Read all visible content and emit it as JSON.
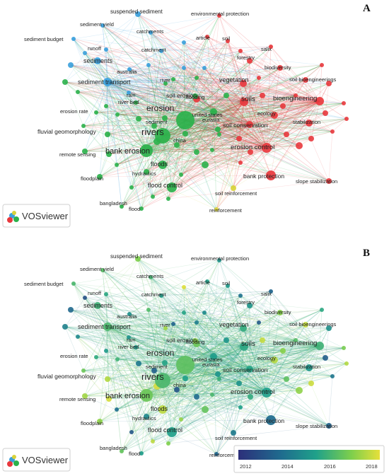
{
  "panels": [
    {
      "letter": "A",
      "badge": "VOSviewer"
    },
    {
      "letter": "B",
      "badge": "VOSviewer"
    }
  ],
  "colorbar": {
    "ticks": [
      "2012",
      "2014",
      "2016",
      "2018"
    ],
    "colors": [
      "#2c2f7a",
      "#1f6b8e",
      "#1fa18a",
      "#7ecf4c",
      "#e6e03a"
    ]
  },
  "cluster_colors": {
    "red": "#e8383d",
    "green": "#2bb14b",
    "blue": "#3aa0dc",
    "yellow": "#d8d23a"
  },
  "nodes": [
    {
      "label": "erosion",
      "cluster": "green",
      "year": 2016.3
    },
    {
      "label": "rivers",
      "cluster": "green",
      "year": 2016.0
    },
    {
      "label": "bank erosion",
      "cluster": "green",
      "year": 2016.5
    },
    {
      "label": "soils",
      "cluster": "red",
      "year": 2015.5
    },
    {
      "label": "bioengineering",
      "cluster": "red",
      "year": 2015.8
    },
    {
      "label": "erosion control",
      "cluster": "red",
      "year": 2015.3
    },
    {
      "label": "vegetation",
      "cluster": "red",
      "year": 2015.6
    },
    {
      "label": "soil erosion",
      "cluster": "red",
      "year": 2016.5
    },
    {
      "label": "sediment transport",
      "cluster": "blue",
      "year": 2016.0
    },
    {
      "label": "sediments",
      "cluster": "blue",
      "year": 2015.8
    },
    {
      "label": "suspended sediment",
      "cluster": "blue",
      "year": 2016.8
    },
    {
      "label": "sediment yield",
      "cluster": "blue",
      "year": 2016.2
    },
    {
      "label": "sediment budget",
      "cluster": "blue",
      "year": 2016.0
    },
    {
      "label": "catchments",
      "cluster": "blue",
      "year": 2015.9
    },
    {
      "label": "catchment",
      "cluster": "blue",
      "year": 2015.2
    },
    {
      "label": "runoff",
      "cluster": "blue",
      "year": 2015.5
    },
    {
      "label": "australia",
      "cluster": "blue",
      "year": 2014.8
    },
    {
      "label": "rain",
      "cluster": "blue",
      "year": 2014.9
    },
    {
      "label": "environmental protection",
      "cluster": "red",
      "year": 2014.9
    },
    {
      "label": "article",
      "cluster": "red",
      "year": 2015.3
    },
    {
      "label": "soil",
      "cluster": "red",
      "year": 2015.1
    },
    {
      "label": "salix",
      "cluster": "red",
      "year": 2013.6
    },
    {
      "label": "forestry",
      "cluster": "red",
      "year": 2015.0
    },
    {
      "label": "biodiversity",
      "cluster": "red",
      "year": 2016.9
    },
    {
      "label": "soil bioengineerings",
      "cluster": "red",
      "year": 2017.6
    },
    {
      "label": "ecology",
      "cluster": "red",
      "year": 2017.4
    },
    {
      "label": "stabilization",
      "cluster": "red",
      "year": 2015.0
    },
    {
      "label": "soil conservation",
      "cluster": "red",
      "year": 2015.4
    },
    {
      "label": "bank protection",
      "cluster": "red",
      "year": 2013.8
    },
    {
      "label": "slope stabilization",
      "cluster": "red",
      "year": 2013.5
    },
    {
      "label": "united states",
      "cluster": "green",
      "year": 2015.2
    },
    {
      "label": "eurasia",
      "cluster": "green",
      "year": 2015.0
    },
    {
      "label": "china",
      "cluster": "green",
      "year": 2015.3
    },
    {
      "label": "flooding",
      "cluster": "green",
      "year": 2016.9
    },
    {
      "label": "river",
      "cluster": "green",
      "year": 2017.2
    },
    {
      "label": "river bed",
      "cluster": "green",
      "year": 2015.1
    },
    {
      "label": "sediment",
      "cluster": "green",
      "year": 2015.4
    },
    {
      "label": "erosion rate",
      "cluster": "green",
      "year": 2015.6
    },
    {
      "label": "fluvial geomorphology",
      "cluster": "green",
      "year": 2017.4
    },
    {
      "label": "remote sensing",
      "cluster": "green",
      "year": 2017.8
    },
    {
      "label": "hydraulics",
      "cluster": "green",
      "year": 2014.6
    },
    {
      "label": "floods",
      "cluster": "green",
      "year": 2017.5
    },
    {
      "label": "floodplain",
      "cluster": "green",
      "year": 2017.0
    },
    {
      "label": "flood control",
      "cluster": "green",
      "year": 2015.3
    },
    {
      "label": "bangladesh",
      "cluster": "green",
      "year": 2016.4
    },
    {
      "label": "flood",
      "cluster": "green",
      "year": 2015.2
    },
    {
      "label": "soil reinforcement",
      "cluster": "yellow",
      "year": 2014.2
    },
    {
      "label": "reinforcement",
      "cluster": "yellow",
      "year": 2013.6
    }
  ]
}
